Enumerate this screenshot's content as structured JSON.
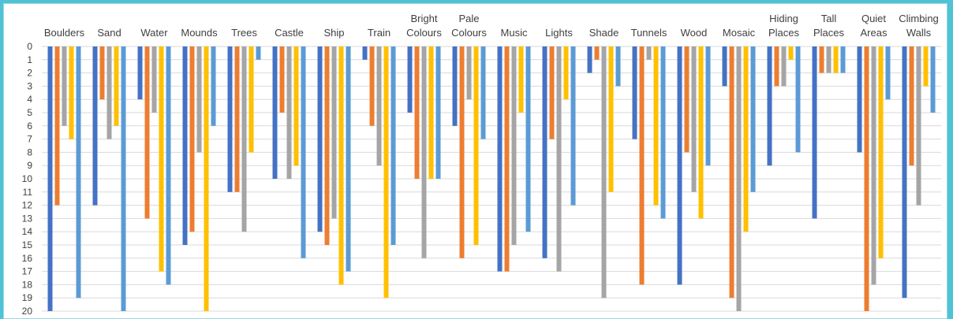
{
  "chart_data": {
    "type": "bar",
    "orientation": "vertical-inverted",
    "title": "",
    "xlabel": "",
    "ylabel": "",
    "ylim": [
      0,
      20
    ],
    "y_ticks": [
      0,
      1,
      2,
      3,
      4,
      5,
      6,
      7,
      8,
      9,
      10,
      11,
      12,
      13,
      14,
      15,
      16,
      17,
      18,
      19,
      20
    ],
    "grid": true,
    "legend": "none",
    "categories": [
      [
        "Boulders"
      ],
      [
        "Sand"
      ],
      [
        "Water"
      ],
      [
        "Mounds"
      ],
      [
        "Trees"
      ],
      [
        "Castle"
      ],
      [
        "Ship"
      ],
      [
        "Train"
      ],
      [
        "Bright",
        "Colours"
      ],
      [
        "Pale",
        "Colours"
      ],
      [
        "Music"
      ],
      [
        "Lights"
      ],
      [
        "Shade"
      ],
      [
        "Tunnels"
      ],
      [
        "Wood"
      ],
      [
        "Mosaic"
      ],
      [
        "Hiding",
        "Places"
      ],
      [
        "Tall",
        "Places"
      ],
      [
        "Quiet",
        "Areas"
      ],
      [
        "Climbing",
        "Walls"
      ]
    ],
    "series_colors": [
      "#4472c4",
      "#ed7d31",
      "#a5a5a5",
      "#ffc000",
      "#5b9bd5"
    ],
    "series": [
      {
        "values": [
          20,
          12,
          4,
          15,
          11,
          10,
          14,
          1,
          5,
          6,
          17,
          16,
          2,
          7,
          18,
          3,
          9,
          13,
          8,
          19
        ]
      },
      {
        "values": [
          12,
          4,
          13,
          14,
          11,
          5,
          15,
          6,
          10,
          16,
          17,
          7,
          1,
          18,
          8,
          19,
          3,
          2,
          20,
          9
        ]
      },
      {
        "values": [
          6,
          7,
          5,
          8,
          14,
          10,
          13,
          9,
          16,
          4,
          15,
          17,
          19,
          1,
          11,
          20,
          3,
          2,
          18,
          12
        ]
      },
      {
        "values": [
          7,
          6,
          17,
          20,
          8,
          9,
          18,
          19,
          10,
          15,
          5,
          4,
          11,
          12,
          13,
          14,
          1,
          2,
          16,
          3
        ]
      },
      {
        "values": [
          19,
          20,
          18,
          6,
          1,
          16,
          17,
          15,
          10,
          7,
          14,
          12,
          3,
          13,
          9,
          11,
          8,
          2,
          4,
          5
        ]
      }
    ]
  }
}
